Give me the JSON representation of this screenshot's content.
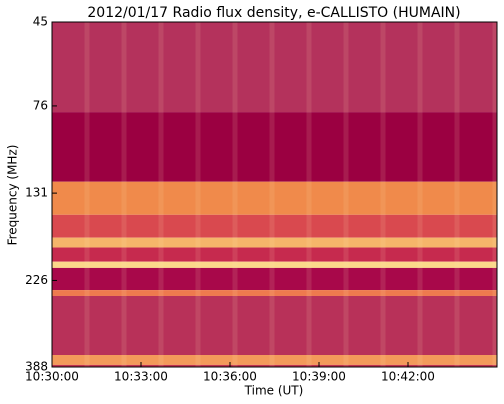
{
  "chart_data": {
    "type": "heatmap",
    "title": "2012/01/17  Radio flux density, e-CALLISTO (HUMAIN)",
    "x_label": "Time (UT)",
    "y_label": "Frequency (MHz)",
    "xlim": [
      "10:30:00",
      "10:45:00"
    ],
    "xticks": [
      "10:30:00",
      "10:33:00",
      "10:36:00",
      "10:39:00",
      "10:42:00"
    ],
    "ylim": [
      45,
      388
    ],
    "yticks": [
      45,
      76,
      131,
      226,
      388
    ],
    "y_log": true,
    "y_inverted": true,
    "bands": [
      {
        "from": 45,
        "to": 79,
        "color": "#b4325c"
      },
      {
        "from": 79,
        "to": 122,
        "color": "#9b0041"
      },
      {
        "from": 122,
        "to": 150,
        "color": "#f08a4b"
      },
      {
        "from": 150,
        "to": 173,
        "color": "#d9494f"
      },
      {
        "from": 173,
        "to": 184,
        "color": "#f5b56a"
      },
      {
        "from": 184,
        "to": 201,
        "color": "#c62a4e"
      },
      {
        "from": 201,
        "to": 209,
        "color": "#fbd98a"
      },
      {
        "from": 209,
        "to": 240,
        "color": "#a8084a"
      },
      {
        "from": 240,
        "to": 249,
        "color": "#ee7a4e"
      },
      {
        "from": 249,
        "to": 360,
        "color": "#b83159"
      },
      {
        "from": 360,
        "to": 383,
        "color": "#f39a5a"
      },
      {
        "from": 383,
        "to": 388,
        "color": "#c0304f"
      }
    ]
  }
}
